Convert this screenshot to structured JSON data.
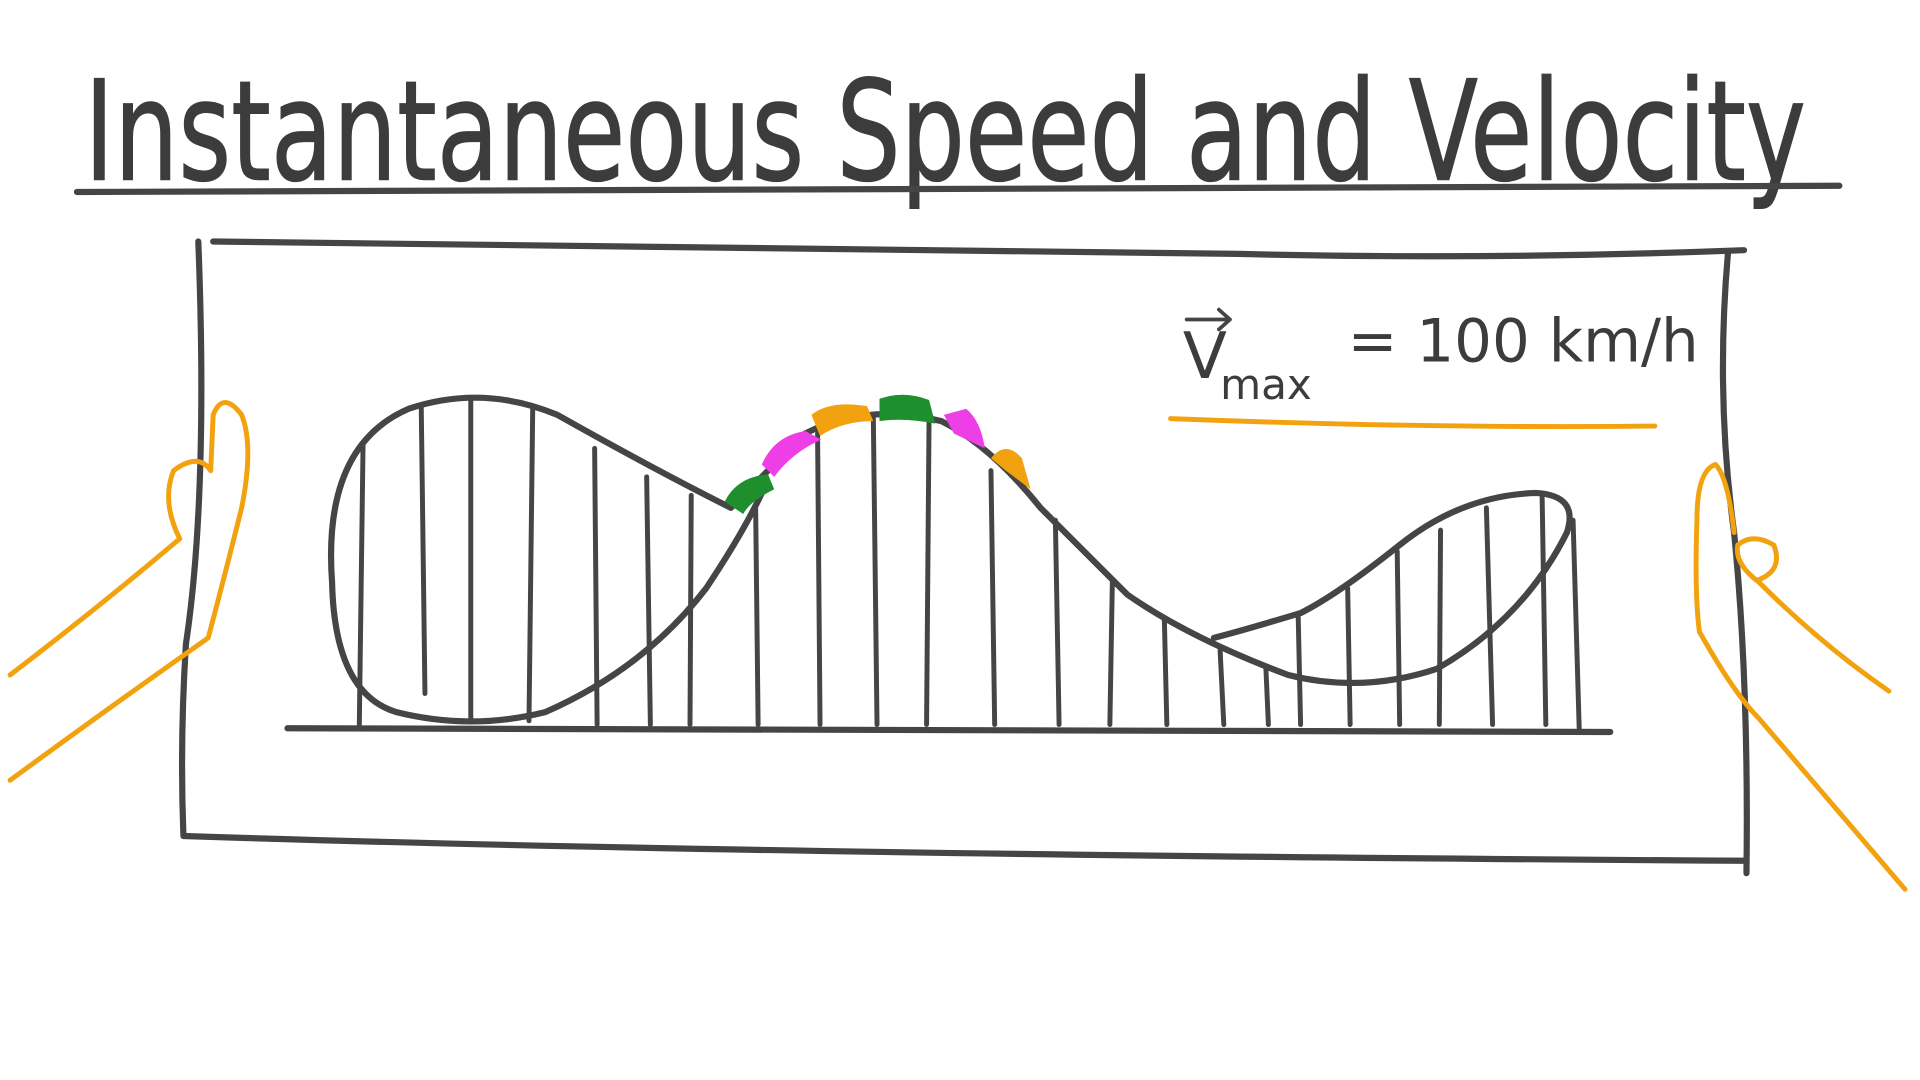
{
  "title": "Instantaneous Speed and Velocity",
  "formula": {
    "symbol": "V",
    "subscript": "max",
    "value": "= 100 km/h"
  }
}
